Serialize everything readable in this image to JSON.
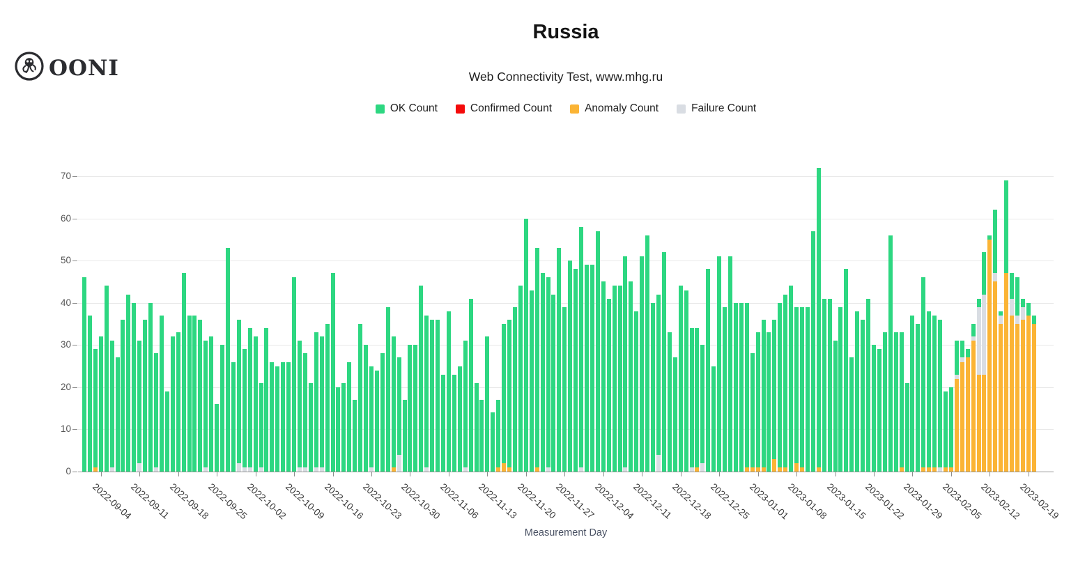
{
  "header": {
    "logo_text": "OONI"
  },
  "chart_data": {
    "type": "bar",
    "stacked": true,
    "title": "Russia",
    "subtitle": "Web Connectivity Test, www.mhg.ru",
    "xlabel": "Measurement Day",
    "grid": "horizontal",
    "legend_position": "top-center",
    "ylim": [
      0,
      72
    ],
    "yticks": [
      0,
      10,
      20,
      30,
      40,
      50,
      60,
      70
    ],
    "bar_count": 173,
    "x_tick_first_bar_index": 3,
    "x_tick_step": 7,
    "x_tick_labels": [
      "2022-09-04",
      "2022-09-11",
      "2022-09-18",
      "2022-09-25",
      "2022-10-02",
      "2022-10-09",
      "2022-10-16",
      "2022-10-23",
      "2022-10-30",
      "2022-11-06",
      "2022-11-13",
      "2022-11-20",
      "2022-11-27",
      "2022-12-04",
      "2022-12-11",
      "2022-12-18",
      "2022-12-25",
      "2023-01-01",
      "2023-01-08",
      "2023-01-15",
      "2023-01-22",
      "2023-01-29",
      "2023-02-05",
      "2023-02-12",
      "2023-02-19"
    ],
    "legend": [
      {
        "key": "ok",
        "label": "OK Count",
        "color": "#2dd781"
      },
      {
        "key": "confirmed",
        "label": "Confirmed Count",
        "color": "#f40b0b"
      },
      {
        "key": "anomaly",
        "label": "Anomaly Count",
        "color": "#fbb435"
      },
      {
        "key": "failure",
        "label": "Failure Count",
        "color": "#d9dde3"
      }
    ],
    "stack_order_bottom_to_top": [
      "anomaly",
      "confirmed",
      "failure",
      "ok"
    ],
    "series": {
      "ok": [
        46,
        37,
        28,
        32,
        44,
        30,
        27,
        36,
        42,
        40,
        29,
        36,
        40,
        27,
        37,
        19,
        32,
        33,
        47,
        37,
        37,
        36,
        30,
        32,
        16,
        30,
        53,
        26,
        34,
        28,
        33,
        32,
        20,
        34,
        26,
        25,
        26,
        26,
        46,
        30,
        27,
        21,
        32,
        31,
        35,
        47,
        20,
        21,
        26,
        17,
        35,
        30,
        24,
        24,
        28,
        39,
        31,
        23,
        17,
        30,
        30,
        44,
        36,
        36,
        36,
        23,
        38,
        23,
        25,
        30,
        41,
        21,
        17,
        32,
        14,
        16,
        33,
        35,
        39,
        44,
        60,
        43,
        52,
        47,
        45,
        42,
        53,
        39,
        50,
        48,
        57,
        49,
        49,
        57,
        45,
        41,
        44,
        44,
        50,
        45,
        38,
        51,
        56,
        40,
        38,
        52,
        33,
        27,
        44,
        43,
        33,
        33,
        28,
        48,
        25,
        51,
        39,
        51,
        40,
        40,
        39,
        27,
        32,
        35,
        33,
        33,
        39,
        41,
        44,
        37,
        38,
        39,
        57,
        71,
        41,
        41,
        31,
        39,
        48,
        27,
        38,
        36,
        41,
        30,
        29,
        33,
        56,
        33,
        32,
        21,
        37,
        35,
        45,
        37,
        36,
        35,
        18,
        19,
        8,
        4,
        2,
        3,
        2,
        10,
        1,
        15,
        1,
        22,
        6,
        9,
        2,
        3,
        2
      ],
      "confirmed": [
        0,
        0,
        0,
        0,
        0,
        0,
        0,
        0,
        0,
        0,
        0,
        0,
        0,
        0,
        0,
        0,
        0,
        0,
        0,
        0,
        0,
        0,
        0,
        0,
        0,
        0,
        0,
        0,
        0,
        0,
        0,
        0,
        0,
        0,
        0,
        0,
        0,
        0,
        0,
        0,
        0,
        0,
        0,
        0,
        0,
        0,
        0,
        0,
        0,
        0,
        0,
        0,
        0,
        0,
        0,
        0,
        0,
        0,
        0,
        0,
        0,
        0,
        0,
        0,
        0,
        0,
        0,
        0,
        0,
        0,
        0,
        0,
        0,
        0,
        0,
        0,
        0,
        0,
        0,
        0,
        0,
        0,
        0,
        0,
        0,
        0,
        0,
        0,
        0,
        0,
        0,
        0,
        0,
        0,
        0,
        0,
        0,
        0,
        0,
        0,
        0,
        0,
        0,
        0,
        0,
        0,
        0,
        0,
        0,
        0,
        0,
        0,
        0,
        0,
        0,
        0,
        0,
        0,
        0,
        0,
        0,
        0,
        0,
        0,
        0,
        0,
        0,
        0,
        0,
        0,
        0,
        0,
        0,
        0,
        0,
        0,
        0,
        0,
        0,
        0,
        0,
        0,
        0,
        0,
        0,
        0,
        0,
        0,
        0,
        0,
        0,
        0,
        0,
        0,
        0,
        0,
        0,
        0,
        0,
        0,
        0,
        0,
        0,
        0,
        0,
        0,
        0,
        0,
        0,
        0,
        0,
        0,
        0
      ],
      "anomaly": [
        0,
        0,
        1,
        0,
        0,
        0,
        0,
        0,
        0,
        0,
        0,
        0,
        0,
        0,
        0,
        0,
        0,
        0,
        0,
        0,
        0,
        0,
        0,
        0,
        0,
        0,
        0,
        0,
        0,
        0,
        0,
        0,
        0,
        0,
        0,
        0,
        0,
        0,
        0,
        0,
        0,
        0,
        0,
        0,
        0,
        0,
        0,
        0,
        0,
        0,
        0,
        0,
        0,
        0,
        0,
        0,
        1,
        0,
        0,
        0,
        0,
        0,
        0,
        0,
        0,
        0,
        0,
        0,
        0,
        0,
        0,
        0,
        0,
        0,
        0,
        1,
        2,
        1,
        0,
        0,
        0,
        0,
        1,
        0,
        0,
        0,
        0,
        0,
        0,
        0,
        0,
        0,
        0,
        0,
        0,
        0,
        0,
        0,
        0,
        0,
        0,
        0,
        0,
        0,
        0,
        0,
        0,
        0,
        0,
        0,
        0,
        1,
        0,
        0,
        0,
        0,
        0,
        0,
        0,
        0,
        1,
        1,
        1,
        1,
        0,
        3,
        1,
        1,
        0,
        2,
        1,
        0,
        0,
        1,
        0,
        0,
        0,
        0,
        0,
        0,
        0,
        0,
        0,
        0,
        0,
        0,
        0,
        0,
        1,
        0,
        0,
        0,
        1,
        1,
        1,
        0,
        1,
        1,
        22,
        26,
        27,
        31,
        23,
        23,
        55,
        45,
        35,
        47,
        37,
        35,
        36,
        37,
        35
      ],
      "failure": [
        0,
        0,
        0,
        0,
        0,
        1,
        0,
        0,
        0,
        0,
        2,
        0,
        0,
        1,
        0,
        0,
        0,
        0,
        0,
        0,
        0,
        0,
        1,
        0,
        0,
        0,
        0,
        0,
        2,
        1,
        1,
        0,
        1,
        0,
        0,
        0,
        0,
        0,
        0,
        1,
        1,
        0,
        1,
        1,
        0,
        0,
        0,
        0,
        0,
        0,
        0,
        0,
        1,
        0,
        0,
        0,
        0,
        4,
        0,
        0,
        0,
        0,
        1,
        0,
        0,
        0,
        0,
        0,
        0,
        1,
        0,
        0,
        0,
        0,
        0,
        0,
        0,
        0,
        0,
        0,
        0,
        0,
        0,
        0,
        1,
        0,
        0,
        0,
        0,
        0,
        1,
        0,
        0,
        0,
        0,
        0,
        0,
        0,
        1,
        0,
        0,
        0,
        0,
        0,
        4,
        0,
        0,
        0,
        0,
        0,
        1,
        0,
        2,
        0,
        0,
        0,
        0,
        0,
        0,
        0,
        0,
        0,
        0,
        0,
        0,
        0,
        0,
        0,
        0,
        0,
        0,
        0,
        0,
        0,
        0,
        0,
        0,
        0,
        0,
        0,
        0,
        0,
        0,
        0,
        0,
        0,
        0,
        0,
        0,
        0,
        0,
        0,
        0,
        0,
        0,
        1,
        0,
        0,
        1,
        1,
        0,
        1,
        16,
        19,
        0,
        2,
        2,
        0,
        4,
        2,
        3,
        0,
        0
      ]
    }
  }
}
